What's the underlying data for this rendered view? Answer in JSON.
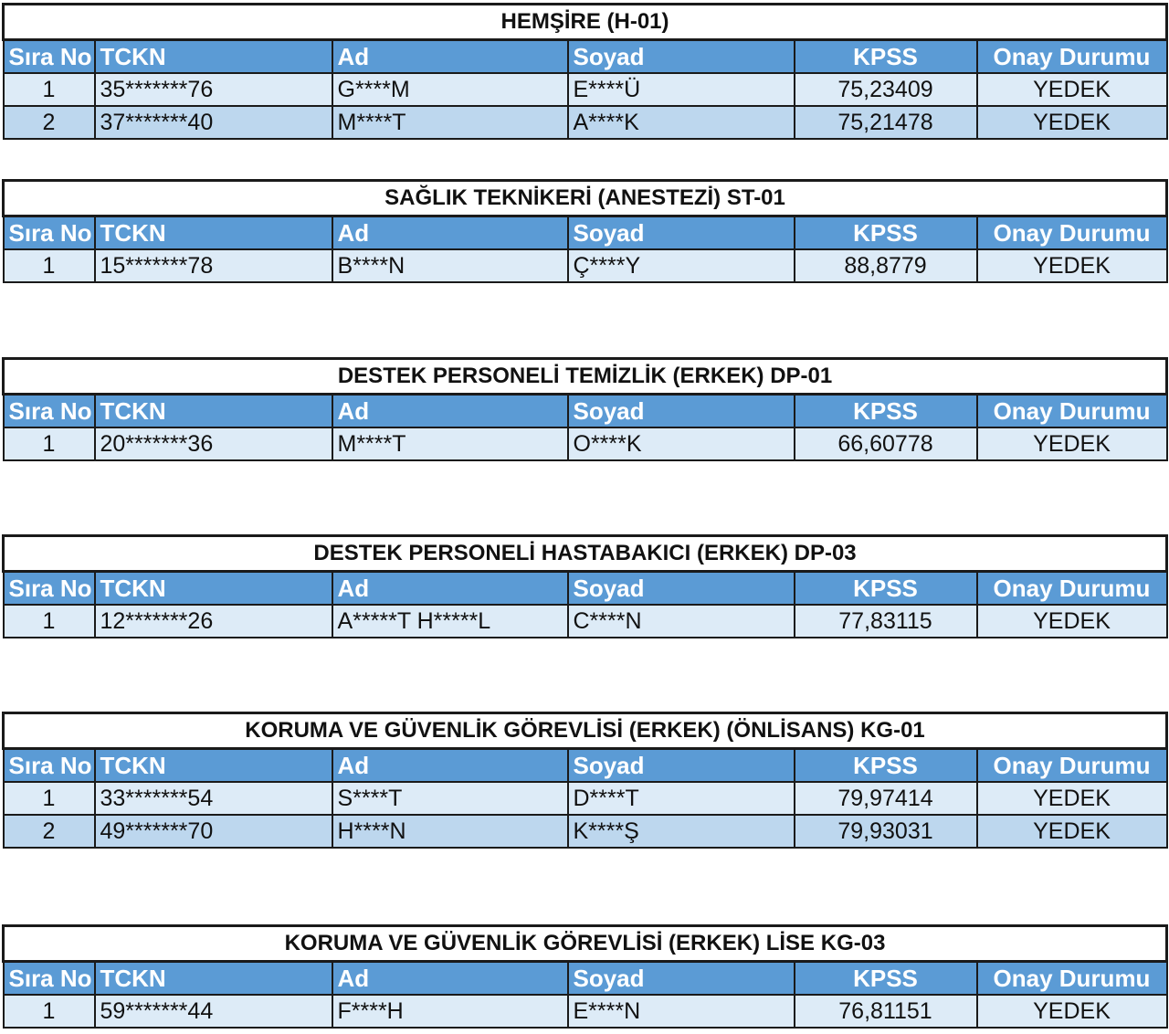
{
  "columns": {
    "sira_no": "Sıra No",
    "tckn": "TCKN",
    "ad": "Ad",
    "soyad": "Soyad",
    "kpss": "KPSS",
    "onay_durumu": "Onay Durumu"
  },
  "sections": [
    {
      "title": "HEMŞİRE (H-01)",
      "rows": [
        {
          "no": "1",
          "tckn": "35*******76",
          "ad": "G****M",
          "soyad": "E****Ü",
          "kpss": "75,23409",
          "durum": "YEDEK"
        },
        {
          "no": "2",
          "tckn": "37*******40",
          "ad": "M****T",
          "soyad": "A****K",
          "kpss": "75,21478",
          "durum": "YEDEK"
        }
      ]
    },
    {
      "title": "SAĞLIK TEKNİKERİ (ANESTEZİ) ST-01",
      "rows": [
        {
          "no": "1",
          "tckn": "15*******78",
          "ad": "B****N",
          "soyad": "Ç****Y",
          "kpss": "88,8779",
          "durum": "YEDEK"
        }
      ]
    },
    {
      "title": "DESTEK PERSONELİ TEMİZLİK (ERKEK) DP-01",
      "rows": [
        {
          "no": "1",
          "tckn": "20*******36",
          "ad": "M****T",
          "soyad": "O****K",
          "kpss": "66,60778",
          "durum": "YEDEK"
        }
      ]
    },
    {
      "title": "DESTEK PERSONELİ HASTABAKICI (ERKEK) DP-03",
      "rows": [
        {
          "no": "1",
          "tckn": "12*******26",
          "ad": "A*****T H*****L",
          "soyad": "C****N",
          "kpss": "77,83115",
          "durum": "YEDEK"
        }
      ]
    },
    {
      "title": "KORUMA VE GÜVENLİK GÖREVLİSİ (ERKEK) (ÖNLİSANS) KG-01",
      "rows": [
        {
          "no": "1",
          "tckn": "33*******54",
          "ad": "S****T",
          "soyad": "D****T",
          "kpss": "79,97414",
          "durum": "YEDEK"
        },
        {
          "no": "2",
          "tckn": "49*******70",
          "ad": "H****N",
          "soyad": "K****Ş",
          "kpss": "79,93031",
          "durum": "YEDEK"
        }
      ]
    },
    {
      "title": "KORUMA VE GÜVENLİK GÖREVLİSİ (ERKEK) LİSE KG-03",
      "rows": [
        {
          "no": "1",
          "tckn": "59*******44",
          "ad": "F****H",
          "soyad": "E****N",
          "kpss": "76,81151",
          "durum": "YEDEK"
        }
      ]
    }
  ]
}
